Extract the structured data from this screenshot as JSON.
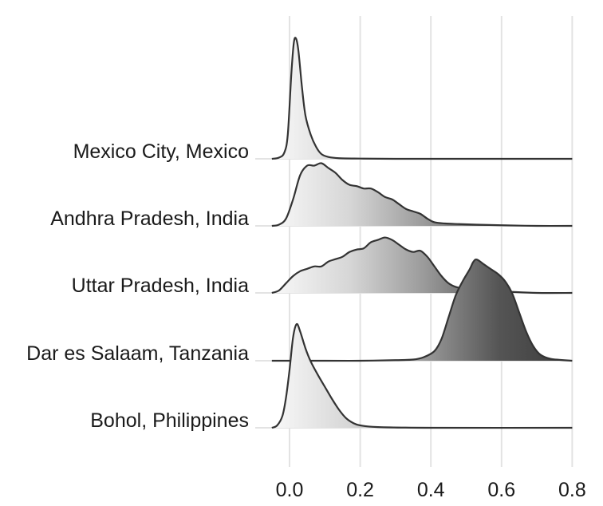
{
  "chart_data": {
    "type": "ridgeline",
    "title": "",
    "xlabel": "",
    "ylabel": "",
    "xlim": [
      -0.05,
      0.82
    ],
    "x_ticks": [
      "0.0",
      "0.2",
      "0.4",
      "0.6",
      "0.8"
    ],
    "x_tick_values": [
      0.0,
      0.2,
      0.4,
      0.6,
      0.8
    ],
    "grid": "vertical",
    "fill": "gradient (light to dark grey, left to right)",
    "series": [
      {
        "name": "Mexico City, Mexico",
        "x": [
          -0.05,
          -0.03,
          -0.015,
          -0.005,
          0.005,
          0.012,
          0.018,
          0.025,
          0.035,
          0.045,
          0.06,
          0.075,
          0.09,
          0.11,
          0.14,
          0.2,
          0.3,
          0.5,
          0.8
        ],
        "density": [
          0.0,
          0.01,
          0.05,
          0.2,
          0.7,
          0.96,
          1.0,
          0.9,
          0.6,
          0.36,
          0.2,
          0.1,
          0.04,
          0.015,
          0.005,
          0.002,
          0.0,
          0.0,
          0.0
        ]
      },
      {
        "name": "Andhra Pradesh, India",
        "x": [
          -0.05,
          -0.03,
          -0.01,
          0.01,
          0.03,
          0.05,
          0.07,
          0.09,
          0.11,
          0.13,
          0.15,
          0.17,
          0.19,
          0.21,
          0.23,
          0.25,
          0.27,
          0.29,
          0.31,
          0.33,
          0.35,
          0.37,
          0.39,
          0.41,
          0.44,
          0.48,
          0.53,
          0.6,
          0.7,
          0.8
        ],
        "density": [
          0.0,
          0.01,
          0.06,
          0.22,
          0.42,
          0.5,
          0.5,
          0.52,
          0.48,
          0.44,
          0.38,
          0.34,
          0.33,
          0.31,
          0.31,
          0.28,
          0.24,
          0.22,
          0.18,
          0.14,
          0.12,
          0.1,
          0.06,
          0.03,
          0.02,
          0.015,
          0.01,
          0.005,
          0.0,
          0.0
        ]
      },
      {
        "name": "Uttar Pradesh, India",
        "x": [
          -0.05,
          -0.03,
          -0.01,
          0.01,
          0.03,
          0.05,
          0.07,
          0.09,
          0.11,
          0.13,
          0.15,
          0.17,
          0.19,
          0.21,
          0.23,
          0.25,
          0.27,
          0.29,
          0.31,
          0.33,
          0.35,
          0.37,
          0.39,
          0.41,
          0.43,
          0.45,
          0.47,
          0.5,
          0.55,
          0.62,
          0.7,
          0.8
        ],
        "density": [
          0.0,
          0.02,
          0.08,
          0.14,
          0.18,
          0.2,
          0.22,
          0.22,
          0.26,
          0.28,
          0.3,
          0.34,
          0.36,
          0.37,
          0.42,
          0.44,
          0.46,
          0.44,
          0.4,
          0.36,
          0.34,
          0.35,
          0.3,
          0.22,
          0.14,
          0.08,
          0.05,
          0.03,
          0.02,
          0.01,
          0.0,
          0.0
        ]
      },
      {
        "name": "Dar es Salaam, Tanzania",
        "x": [
          -0.05,
          0.1,
          0.2,
          0.3,
          0.35,
          0.38,
          0.41,
          0.43,
          0.45,
          0.47,
          0.49,
          0.51,
          0.52,
          0.53,
          0.55,
          0.57,
          0.59,
          0.61,
          0.63,
          0.65,
          0.67,
          0.69,
          0.71,
          0.74,
          0.8
        ],
        "density": [
          0.0,
          0.0,
          0.0,
          0.005,
          0.01,
          0.03,
          0.08,
          0.18,
          0.36,
          0.54,
          0.66,
          0.76,
          0.82,
          0.84,
          0.8,
          0.76,
          0.72,
          0.66,
          0.56,
          0.4,
          0.24,
          0.12,
          0.05,
          0.015,
          0.0
        ]
      },
      {
        "name": "Bohol, Philippines",
        "x": [
          -0.05,
          -0.035,
          -0.02,
          -0.01,
          0.0,
          0.01,
          0.02,
          0.03,
          0.045,
          0.06,
          0.08,
          0.1,
          0.12,
          0.14,
          0.16,
          0.18,
          0.2,
          0.25,
          0.4,
          0.8
        ],
        "density": [
          0.0,
          0.02,
          0.1,
          0.25,
          0.48,
          0.75,
          0.86,
          0.8,
          0.66,
          0.55,
          0.44,
          0.34,
          0.24,
          0.15,
          0.08,
          0.04,
          0.02,
          0.006,
          0.0,
          0.0
        ]
      }
    ]
  }
}
